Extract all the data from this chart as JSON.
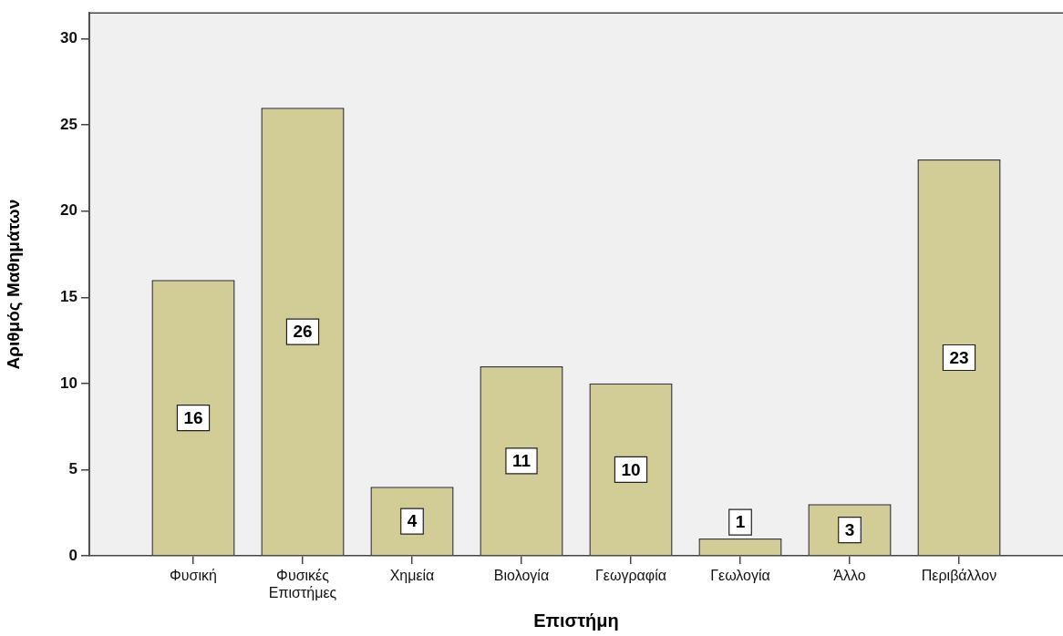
{
  "chart_data": {
    "type": "bar",
    "xlabel": "Επιστήμη",
    "ylabel": "Αριθμός Μαθημάτων",
    "categories": [
      "Φυσική",
      "Φυσικές Επιστήμες",
      "Χημεία",
      "Βιολογία",
      "Γεωγραφία",
      "Γεωλογία",
      "Άλλο",
      "Περιβάλλον"
    ],
    "values": [
      16,
      26,
      4,
      11,
      10,
      1,
      3,
      23
    ],
    "color": "#d2cc96",
    "ylim": [
      0,
      31.5
    ],
    "yticks": [
      0,
      5,
      10,
      15,
      20,
      25,
      30
    ],
    "grid": false,
    "legend": false,
    "data_labels": true
  }
}
